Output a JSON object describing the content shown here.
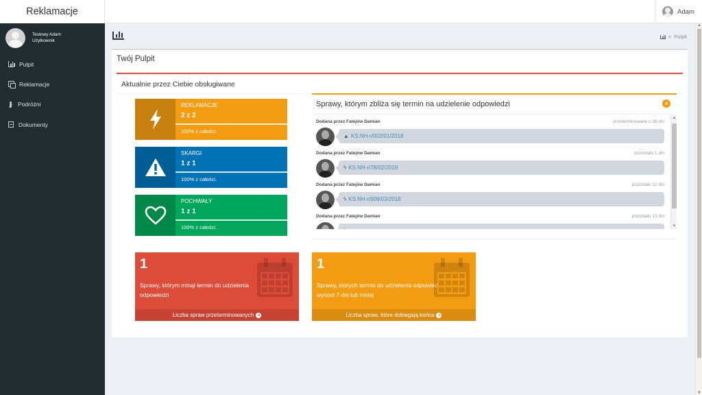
{
  "app": {
    "brand": "Reklamacje"
  },
  "topbar": {
    "user_name": "Adam"
  },
  "sidebar": {
    "user": {
      "name": "Testowy Adam",
      "role": "Użytkownik"
    },
    "items": [
      {
        "label": "Pulpit",
        "icon": "bar-chart-icon"
      },
      {
        "label": "Reklamacje",
        "icon": "copy-icon"
      },
      {
        "label": "Podróżni",
        "icon": "traveler-icon"
      },
      {
        "label": "Dokumenty",
        "icon": "file-icon"
      }
    ]
  },
  "breadcrumb": {
    "current": "Pulpit",
    "separator": ">"
  },
  "dashboard": {
    "title": "Twój Pulpit",
    "section_title": "Aktualnie przez Ciebie obsługiwane",
    "info_boxes": [
      {
        "label": "REKLAMACJE",
        "count": "2 z 2",
        "description": "100% z całości.",
        "color": "#f39c12",
        "icon": "bolt-icon"
      },
      {
        "label": "SKARGI",
        "count": "1 z 1",
        "description": "100% z całości.",
        "color": "#0073b7",
        "icon": "warning-icon"
      },
      {
        "label": "POCHWAŁY",
        "count": "1 z 1",
        "description": "100% z całości.",
        "color": "#00a65a",
        "icon": "heart-icon"
      }
    ],
    "deadline": {
      "title": "Sprawy, którym zbliża się termin na udzielenie odpowiedzi",
      "badge": "4",
      "items": [
        {
          "sender": "Dodana przez Fatejów Damian",
          "time": "przeterminowane o 38 dni",
          "case": "KS.NH-r/002/01/2018",
          "icon": "warning-icon"
        },
        {
          "sender": "Dodana przez Fatejów Damian",
          "time": "pozostało 1 dni",
          "case": "KS.NH-r/78/02/2018",
          "icon": "bolt-icon"
        },
        {
          "sender": "Dodana przez Fatejów Damian",
          "time": "pozostało 12 dni",
          "case": "KS.NH-r/009/03/2018",
          "icon": "bolt-icon"
        },
        {
          "sender": "Dodana przez Fatejów Damian",
          "time": "pozostało 13 dni",
          "case": "",
          "icon": "bolt-icon"
        }
      ]
    },
    "small_boxes": [
      {
        "number": "1",
        "text": "Sprawy, którym minął termin do udzielenia odpowiedzi",
        "footer": "Liczba spraw przeterminowanych",
        "color": "#dd4b39"
      },
      {
        "number": "1",
        "text": "Sprawy, których termin do udzielenia odpowiedzi wynosi 7 dni lub mniej",
        "footer": "Liczba spraw, które dobiegają końca",
        "color": "#f39c12"
      }
    ]
  }
}
